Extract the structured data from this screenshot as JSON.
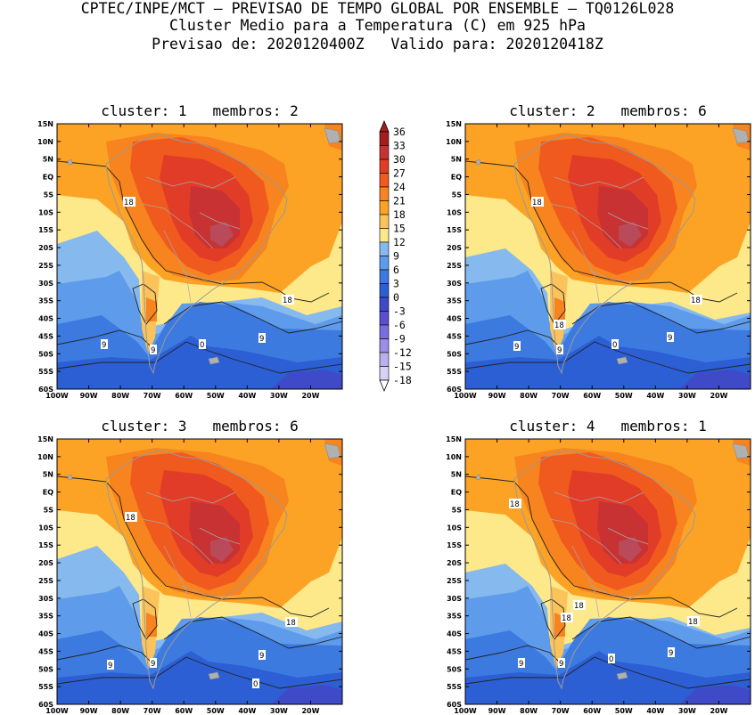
{
  "header": {
    "line1": "CPTEC/INPE/MCT — PREVISAO DE TEMPO GLOBAL POR ENSEMBLE — TQ0126L028",
    "line2": "Cluster Medio para a Temperatura (C) em 925 hPa",
    "line3": "Previsao de: 2020120400Z   Valido para: 2020120418Z"
  },
  "axes": {
    "lat_ticks": [
      "15N",
      "10N",
      "5N",
      "EQ",
      "5S",
      "10S",
      "15S",
      "20S",
      "25S",
      "30S",
      "35S",
      "40S",
      "45S",
      "50S",
      "55S",
      "60S"
    ],
    "lon_ticks": [
      "100W",
      "90W",
      "80W",
      "70W",
      "60W",
      "50W",
      "40W",
      "30W",
      "20W"
    ]
  },
  "panels": [
    {
      "title": "cluster: 1   membros: 2",
      "contour_labels": [
        "18",
        "18",
        "9",
        "9",
        "0",
        "9"
      ]
    },
    {
      "title": "cluster: 2   membros: 6",
      "contour_labels": [
        "18",
        "18",
        "18",
        "9",
        "9",
        "0",
        "9"
      ]
    },
    {
      "title": "cluster: 3   membros: 6",
      "contour_labels": [
        "18",
        "18",
        "9",
        "9",
        "9",
        "0"
      ]
    },
    {
      "title": "cluster: 4   membros: 1",
      "contour_labels": [
        "18",
        "18",
        "18",
        "18",
        "9",
        "9",
        "0",
        "9"
      ]
    }
  ],
  "colorbar": {
    "labels": [
      "36",
      "33",
      "30",
      "27",
      "24",
      "21",
      "18",
      "15",
      "12",
      "9",
      "6",
      "3",
      "0",
      "-3",
      "-6",
      "-9",
      "-12",
      "-15",
      "-18"
    ],
    "colors": [
      "#a51d1d",
      "#c83232",
      "#e13c28",
      "#f05a1e",
      "#f7841e",
      "#fca326",
      "#fcc35b",
      "#fde88a",
      "#86b9ee",
      "#5e9bea",
      "#3d7ae0",
      "#2c5fd4",
      "#3f4ac8",
      "#5a4fd0",
      "#7a6de0",
      "#9b8ee6",
      "#bbb0ee",
      "#d9d0f6"
    ]
  }
}
